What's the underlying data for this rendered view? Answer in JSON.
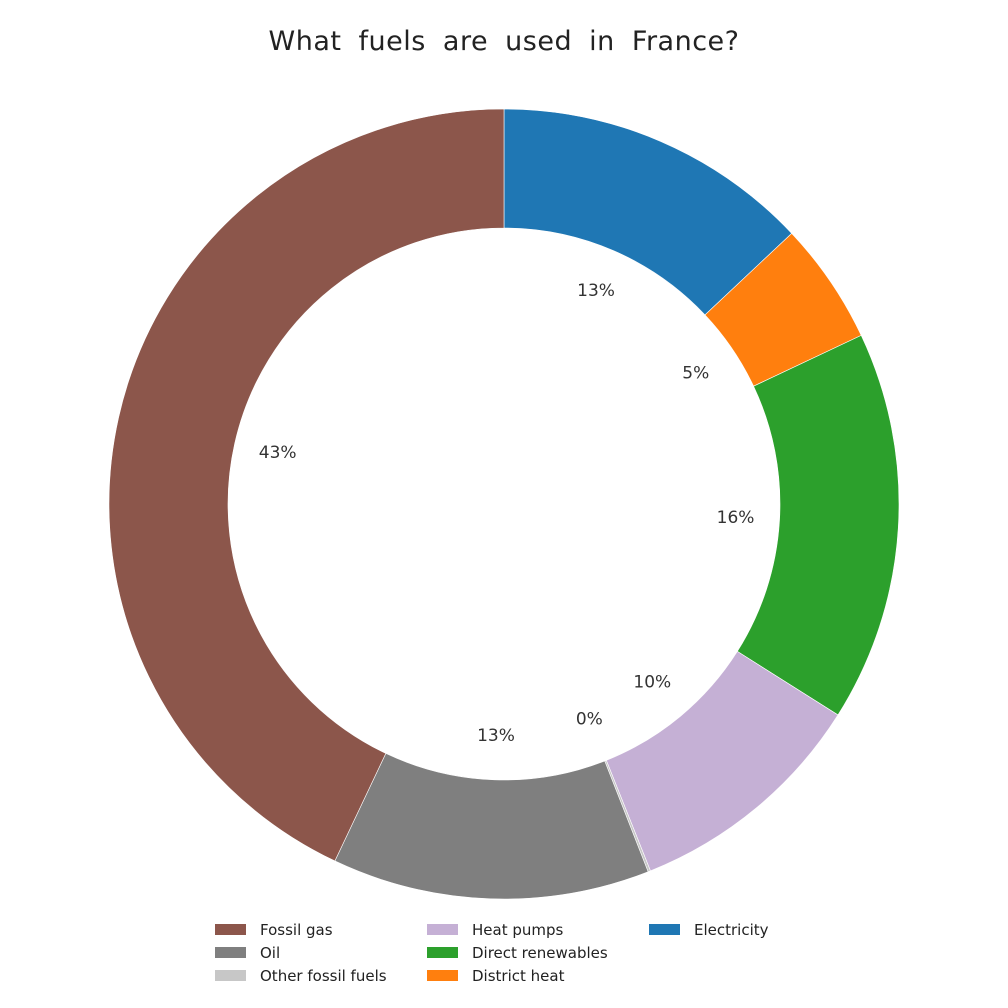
{
  "chart_data": {
    "type": "pie",
    "variant": "donut",
    "title": "What fuels are used in France?",
    "start": "top",
    "direction": "clockwise",
    "legend_position": "bottom",
    "slices": [
      {
        "name": "Electricity",
        "value": 13,
        "label": "13%",
        "color": "#1f77b4"
      },
      {
        "name": "District heat",
        "value": 5,
        "label": "5%",
        "color": "#ff7f0e"
      },
      {
        "name": "Direct renewables",
        "value": 16,
        "label": "16%",
        "color": "#2ca02c"
      },
      {
        "name": "Heat pumps",
        "value": 10,
        "label": "10%",
        "color": "#c5b0d5"
      },
      {
        "name": "Other fossil fuels",
        "value": 0.1,
        "label": "0%",
        "color": "#c7c7c7"
      },
      {
        "name": "Oil",
        "value": 13,
        "label": "13%",
        "color": "#7f7f7f"
      },
      {
        "name": "Fossil gas",
        "value": 43,
        "label": "43%",
        "color": "#8c564b"
      }
    ],
    "legend": [
      {
        "name": "Fossil gas",
        "color": "#8c564b"
      },
      {
        "name": "Oil",
        "color": "#7f7f7f"
      },
      {
        "name": "Other fossil fuels",
        "color": "#c7c7c7"
      },
      {
        "name": "Heat pumps",
        "color": "#c5b0d5"
      },
      {
        "name": "Direct renewables",
        "color": "#2ca02c"
      },
      {
        "name": "District heat",
        "color": "#ff7f0e"
      },
      {
        "name": "Electricity",
        "color": "#1f77b4"
      }
    ]
  }
}
